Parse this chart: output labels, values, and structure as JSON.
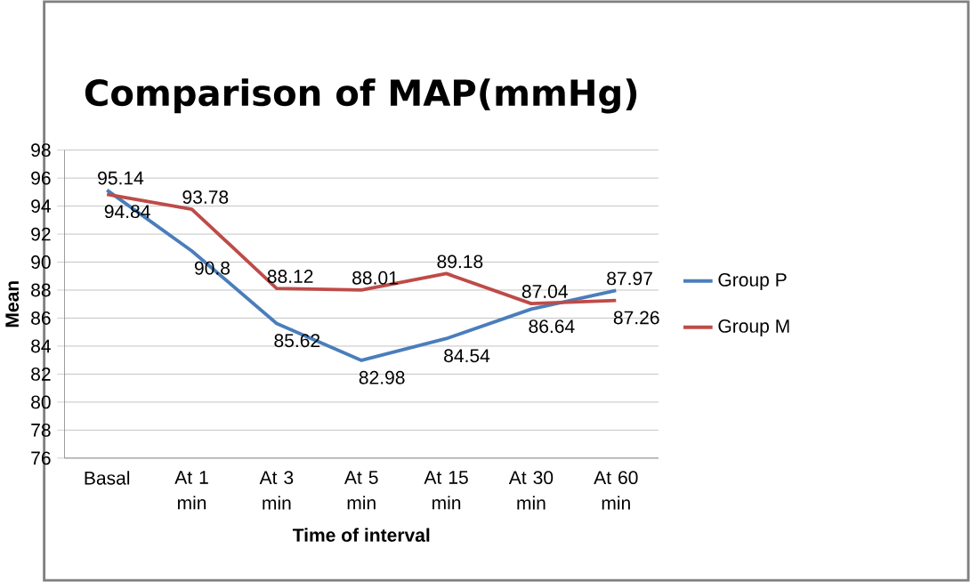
{
  "chart_data": {
    "type": "line",
    "title": "Comparison of MAP(mmHg)",
    "xlabel": "Time of interval",
    "ylabel": "Mean",
    "categories": [
      "Basal",
      "At 1 min",
      "At 3 min",
      "At 5 min",
      "At 15 min",
      "At 30 min",
      "At 60 min"
    ],
    "series": [
      {
        "name": "Group P",
        "color": "#4a7ebb",
        "values": [
          95.14,
          90.8,
          85.62,
          82.98,
          84.54,
          86.64,
          87.97
        ]
      },
      {
        "name": "Group M",
        "color": "#be4b48",
        "values": [
          94.84,
          93.78,
          88.12,
          88.01,
          89.18,
          87.04,
          87.26
        ]
      }
    ],
    "ylim": [
      76,
      98
    ],
    "yticks": [
      76,
      78,
      80,
      82,
      84,
      86,
      88,
      90,
      92,
      94,
      96,
      98
    ],
    "grid": "y",
    "legend": "right",
    "data_labels": true,
    "marker": "none",
    "line_style": "solid"
  }
}
